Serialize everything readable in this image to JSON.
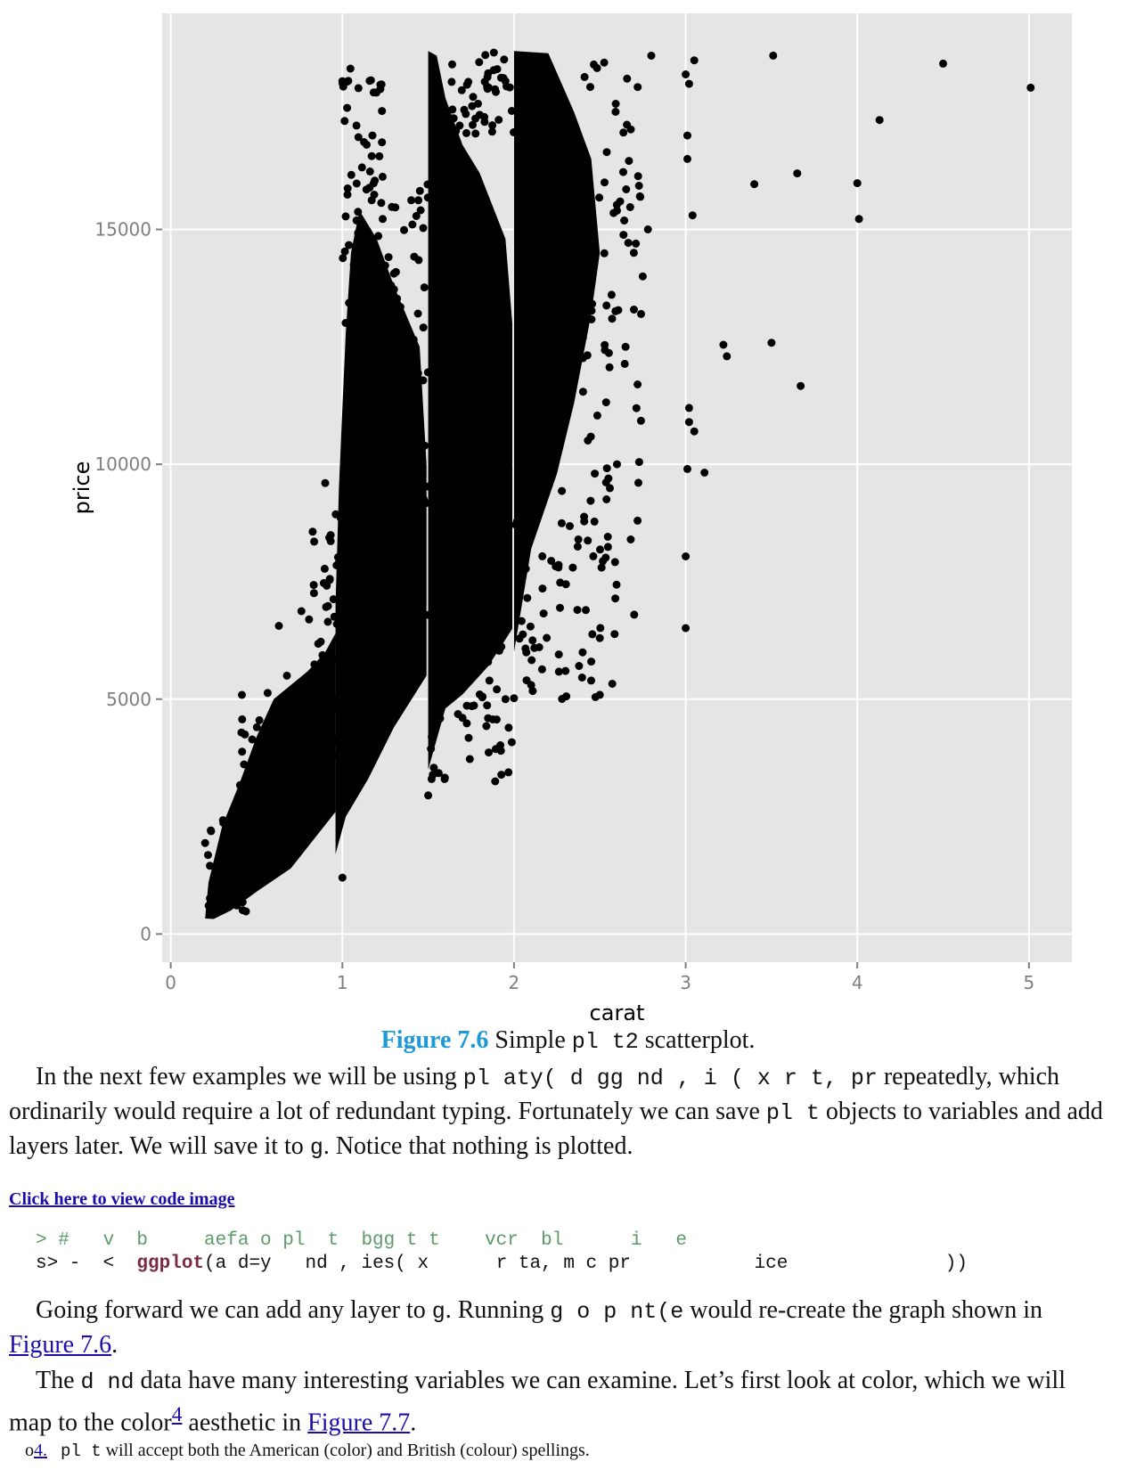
{
  "chart_data": {
    "type": "scatter",
    "xlabel": "carat",
    "ylabel": "price",
    "xlim": [
      -0.05,
      5.25
    ],
    "ylim": [
      -600,
      19600
    ],
    "x_ticks": [
      0,
      1,
      2,
      3,
      4,
      5
    ],
    "y_ticks": [
      0,
      5000,
      10000,
      15000
    ],
    "x_tick_labels": [
      "0",
      "1",
      "2",
      "3",
      "4",
      "5"
    ],
    "y_tick_labels": [
      "0",
      "5000",
      "10000",
      "15000"
    ],
    "grid": true,
    "background": "#e5e5e5",
    "grid_color": "#ffffff",
    "point_color": "#000000",
    "outliers": [
      [
        5.01,
        18018
      ],
      [
        4.5,
        18531
      ],
      [
        4.13,
        17329
      ],
      [
        3.65,
        16193
      ],
      [
        3.51,
        18701
      ],
      [
        3.4,
        15964
      ],
      [
        4.01,
        15223
      ],
      [
        4.0,
        15984
      ],
      [
        3.5,
        12587
      ],
      [
        3.24,
        12300
      ],
      [
        3.22,
        12545
      ],
      [
        3.11,
        9823
      ],
      [
        3.67,
        11668
      ],
      [
        3.04,
        15300
      ],
      [
        3.01,
        16500
      ],
      [
        3.0,
        18300
      ],
      [
        3.02,
        18100
      ],
      [
        3.05,
        18600
      ],
      [
        3.01,
        17000
      ],
      [
        2.8,
        18700
      ],
      [
        3.0,
        8040
      ],
      [
        3.0,
        6512
      ],
      [
        3.01,
        9900
      ],
      [
        3.05,
        10700
      ],
      [
        3.02,
        11200
      ],
      [
        2.75,
        14000
      ],
      [
        2.74,
        13200
      ],
      [
        2.72,
        11700
      ],
      [
        2.7,
        6800
      ],
      [
        2.72,
        8800
      ],
      [
        2.68,
        8400
      ],
      [
        2.51,
        7800
      ],
      [
        2.5,
        6300
      ],
      [
        2.78,
        15000
      ],
      [
        2.6,
        10000
      ],
      [
        2.55,
        9700
      ],
      [
        2.65,
        12500
      ],
      [
        1.0,
        1200
      ],
      [
        0.9,
        9600
      ],
      [
        0.63,
        6560
      ],
      [
        1.5,
        2950
      ],
      [
        1.52,
        3300
      ],
      [
        1.7,
        4600
      ],
      [
        1.8,
        5100
      ],
      [
        1.95,
        5000
      ],
      [
        2.0,
        5020
      ],
      [
        2.1,
        5300
      ],
      [
        2.3,
        5600
      ],
      [
        2.45,
        5800
      ],
      [
        3.02,
        10900
      ]
    ]
  },
  "caption": {
    "figure_label": "Figure 7.6",
    "text_before": " Simple ",
    "code": "pl  t2",
    "text_after": " scatterplot."
  },
  "para1": {
    "text1": "In the next few examples we will be using ",
    "code1": "pl aty( d gg nd ,  i  ( x    r  t, pr",
    "text2": " repeatedly, which ordinarily would require a lot of redundant typing. Fortunately we can save ",
    "code2": "pl  t",
    "text3": " objects to variables and add layers later. We will save it to ",
    "code3": "g",
    "text4": ". Notice that nothing is plotted."
  },
  "code_link": "Click here to view code image",
  "code_lines": {
    "line1": "> #   v  b     aefa o pl  t  bgg t t    vcr  bl      i   e",
    "line2_a": "s> -  <  ",
    "line2_fn": "ggplot",
    "line2_b": "(a d=y   nd , ies( x      r ta, m c pr           ice              ))"
  },
  "para2": {
    "text1": "Going forward we can add any layer to ",
    "code1": "g",
    "text2": ". Running ",
    "code2": "g o        p  nt(e",
    "text3": " would re-create the graph shown in ",
    "link": "Figure 7.6",
    "text4": "."
  },
  "para3": {
    "text1": "The ",
    "code1": "d        nd",
    "text2": " data have many interesting variables we can examine. Let’s first look at color, which we will map to the color",
    "sup": "4",
    "text3": " aesthetic in ",
    "link": "Figure 7.7",
    "text4": "."
  },
  "footnote": {
    "marker": "o",
    "number": "4.",
    "code": "pl  t",
    "text": " will accept both the American (color) and British (colour) spellings."
  }
}
